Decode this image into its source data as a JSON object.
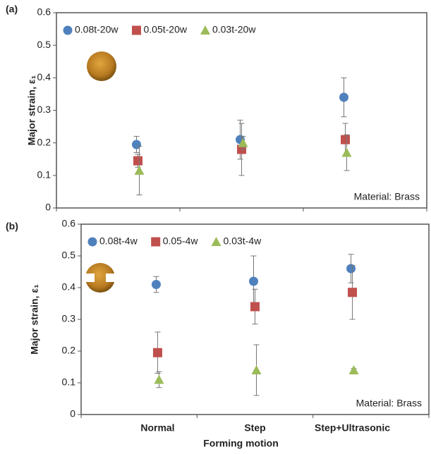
{
  "chart_data": [
    {
      "type": "scatter",
      "panel_label": "(a)",
      "annotation": "Material: Brass",
      "y_label": "Major strain, ε₁",
      "categories": [
        null,
        null,
        null
      ],
      "ylim": [
        0,
        0.6
      ],
      "yticks": [
        0,
        0.1,
        0.2,
        0.3,
        0.4,
        0.5,
        0.6
      ],
      "series": [
        {
          "name": "0.08t-20w",
          "color": "#4f81bd",
          "marker": "circle",
          "values": [
            0.195,
            0.21,
            0.34
          ],
          "errors": [
            0.025,
            0.06,
            0.06
          ]
        },
        {
          "name": "0.05t-20w",
          "color": "#c0504d",
          "marker": "square",
          "values": [
            0.145,
            0.18,
            0.21
          ],
          "errors": [
            0.02,
            0.08,
            0.05
          ]
        },
        {
          "name": "0.03t-20w",
          "color": "#9bbb59",
          "marker": "triangle",
          "values": [
            0.115,
            0.2,
            0.17
          ],
          "errors": [
            0.075,
            0.02,
            0.055
          ]
        }
      ]
    },
    {
      "type": "scatter",
      "panel_label": "(b)",
      "annotation": "Material: Brass",
      "y_label": "Major strain, ε₁",
      "x_label": "Forming motion",
      "categories": [
        "Normal",
        "Step",
        "Step+Ultrasonic"
      ],
      "ylim": [
        0,
        0.6
      ],
      "yticks": [
        0,
        0.1,
        0.2,
        0.3,
        0.4,
        0.5,
        0.6
      ],
      "series": [
        {
          "name": "0.08t-4w",
          "color": "#4f81bd",
          "marker": "circle",
          "values": [
            0.41,
            0.42,
            0.46
          ],
          "errors": [
            0.025,
            0.08,
            0.045
          ]
        },
        {
          "name": "0.05-4w",
          "color": "#c0504d",
          "marker": "square",
          "values": [
            0.195,
            0.34,
            0.385
          ],
          "errors": [
            0.065,
            0.055,
            0.085
          ]
        },
        {
          "name": "0.03t-4w",
          "color": "#9bbb59",
          "marker": "triangle",
          "values": [
            0.11,
            0.14,
            0.14
          ],
          "errors": [
            0.025,
            0.08,
            0.005
          ]
        }
      ]
    }
  ]
}
